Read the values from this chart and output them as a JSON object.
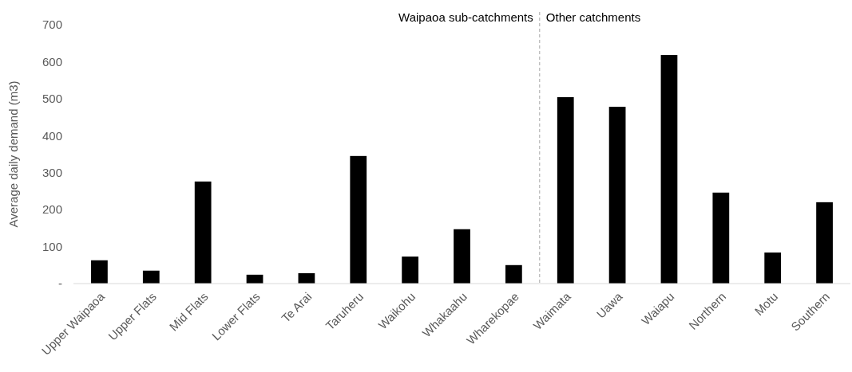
{
  "chart_data": {
    "type": "bar",
    "ylabel": "Average daily demand (m3)",
    "categories": [
      "Upper Waipaoa",
      "Upper Flats",
      "Mid Flats",
      "Lower Flats",
      "Te Arai",
      "Taruheru",
      "Waikohu",
      "Whakaahu",
      "Wharekopae",
      "Waimata",
      "Uawa",
      "Waiapu",
      "Northern",
      "Motu",
      "Southern"
    ],
    "values": [
      63,
      35,
      276,
      24,
      28,
      345,
      73,
      147,
      50,
      504,
      478,
      618,
      246,
      84,
      220
    ],
    "color": "#000000",
    "ylim": [
      0,
      700
    ],
    "yticks": [
      {
        "value": 0,
        "label": "-"
      },
      100,
      200,
      300,
      400,
      500,
      600,
      700
    ],
    "grid": false,
    "annotations": [
      "Waipaoa sub-catchments",
      "Other catchments"
    ]
  }
}
